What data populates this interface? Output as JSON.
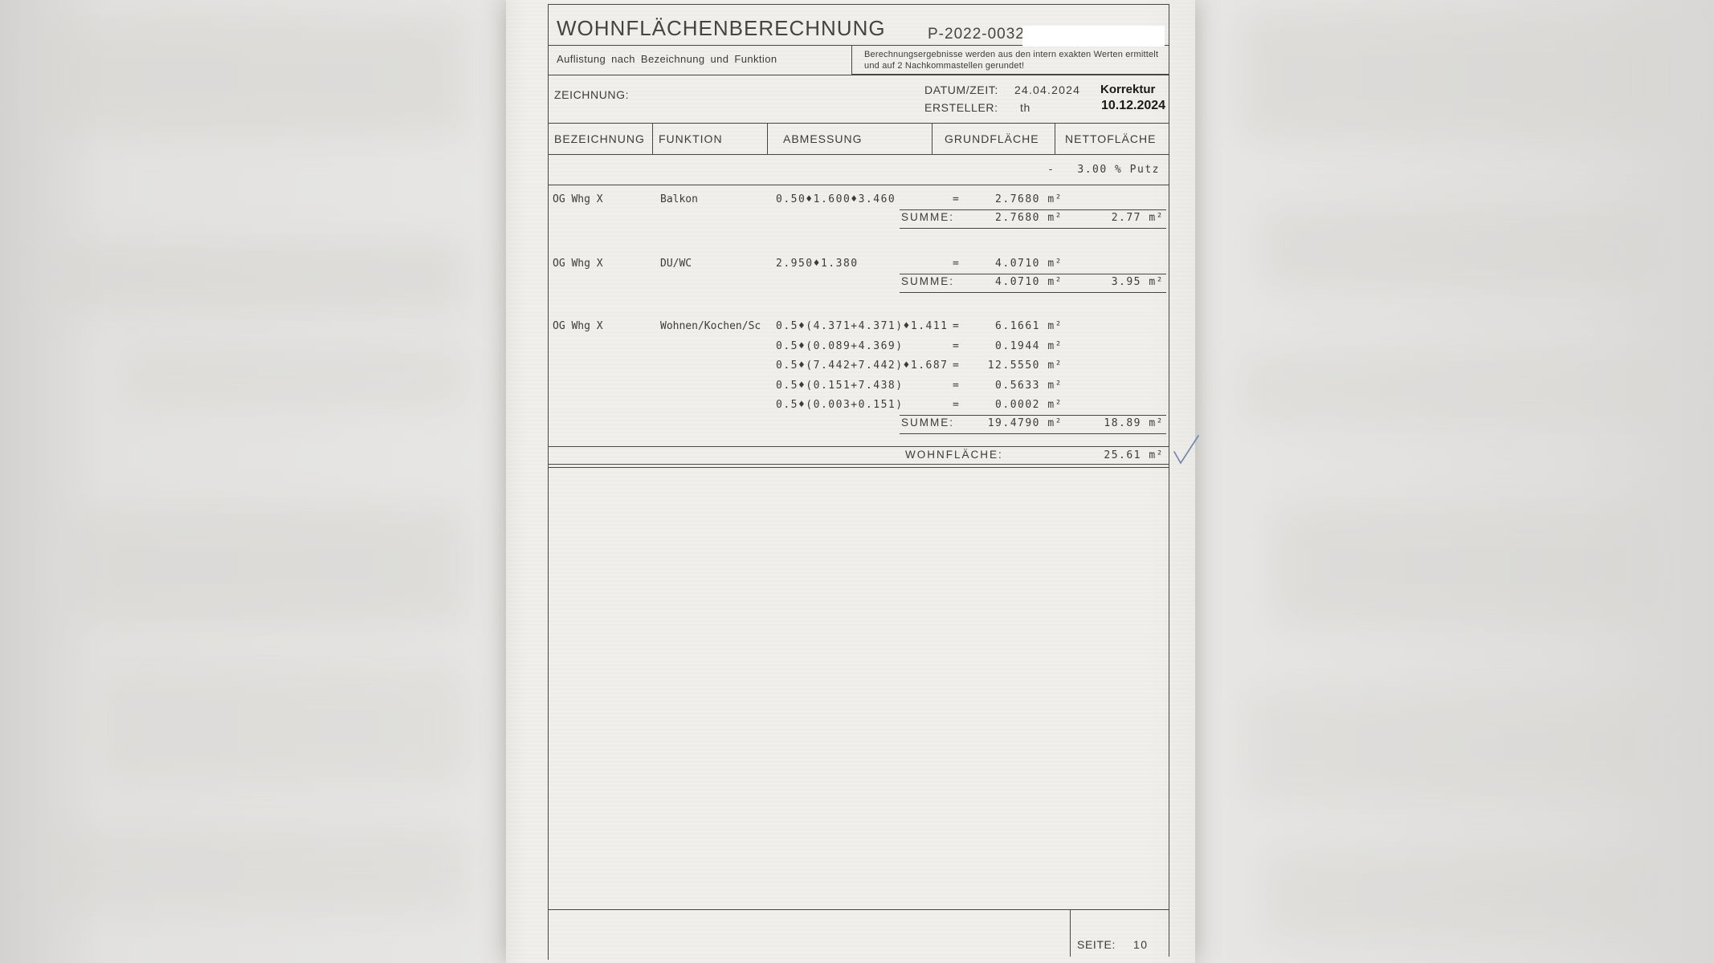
{
  "colors": {
    "paper": "#f0efeb",
    "line": "#474641",
    "check_annotation": "#7289ad"
  },
  "document": {
    "title": "WOHNFLÄCHENBERECHNUNG",
    "project_number": "P-2022-0032",
    "subtitle": "Auflistung nach Bezeichnung und Funktion",
    "note_line1": "Berechnungsergebnisse werden aus den intern exakten Werten ermittelt",
    "note_line2": "und auf 2 Nachkommastellen gerundet!",
    "zeichnung_label": "ZEICHNUNG:",
    "datum_label": "DATUM/ZEIT:",
    "datum_value": "24.04.2024",
    "korrektur_text": "Korrektur",
    "korrektur_date": "10.12.2024",
    "ersteller_label": "ERSTELLER:",
    "ersteller_value": "th",
    "putz_note": "-   3.00 % Putz",
    "summe_label": "SUMME:",
    "wohnflaeche_label": "WOHNFLÄCHE:",
    "wohnflaeche_value": "25.61 m²",
    "seite_label": "SEITE:",
    "seite_value": "10"
  },
  "columns": [
    "BEZEICHNUNG",
    "FUNKTION",
    "ABMESSUNG",
    "GRUNDFLÄCHE",
    "NETTOFLÄCHE"
  ],
  "rows": [
    {
      "bezeichnung": "OG Whg X",
      "funktion": "Balkon",
      "lines": [
        {
          "abmessung": "0.50♦1.600♦3.460",
          "eq": "=",
          "value": "2.7680 m²"
        }
      ],
      "summe_grund": "2.7680 m²",
      "summe_netto": "2.77 m²"
    },
    {
      "bezeichnung": "OG Whg X",
      "funktion": "DU/WC",
      "lines": [
        {
          "abmessung": "2.950♦1.380",
          "eq": "=",
          "value": "4.0710 m²"
        }
      ],
      "summe_grund": "4.0710 m²",
      "summe_netto": "3.95 m²"
    },
    {
      "bezeichnung": "OG Whg X",
      "funktion": "Wohnen/Kochen/Sc",
      "lines": [
        {
          "abmessung": "0.5♦(4.371+4.371)♦1.411",
          "eq": "=",
          "value": "6.1661 m²"
        },
        {
          "abmessung": "0.5♦(0.089+4.369)",
          "eq": "=",
          "value": "0.1944 m²"
        },
        {
          "abmessung": "0.5♦(7.442+7.442)♦1.687",
          "eq": "=",
          "value": "12.5550 m²"
        },
        {
          "abmessung": "0.5♦(0.151+7.438)",
          "eq": "=",
          "value": "0.5633 m²"
        },
        {
          "abmessung": "0.5♦(0.003+0.151)",
          "eq": "=",
          "value": "0.0002 m²"
        }
      ],
      "summe_grund": "19.4790 m²",
      "summe_netto": "18.89 m²"
    }
  ]
}
